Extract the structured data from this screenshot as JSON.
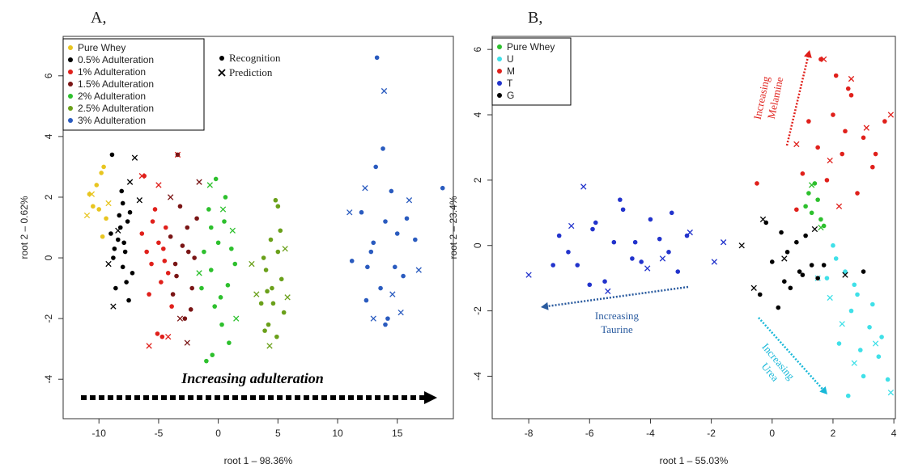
{
  "chart_data": [
    {
      "type": "scatter",
      "panel_label": "A,",
      "x_label": "root 1 – 98.36%",
      "y_label": "root 2 – 0.62%",
      "xlim": [
        -13,
        19.7
      ],
      "ylim": [
        -5.3,
        7.3
      ],
      "xticks": [
        -10,
        -5,
        0,
        5,
        10,
        15
      ],
      "yticks": [
        -4,
        -2,
        0,
        2,
        4,
        6
      ],
      "marker_legend": [
        {
          "label": "Recognition",
          "shape": "dot"
        },
        {
          "label": "Prediction",
          "shape": "x"
        }
      ],
      "annotations": [
        {
          "text": [
            "Increasing adulteration"
          ],
          "color": "#000000"
        }
      ],
      "series": [
        {
          "name": "Pure Whey",
          "color": "#e8c520",
          "x": [
            -9.6,
            -10.2,
            -9.8,
            -10.5,
            -9.4,
            -10,
            -9.7,
            -10.8
          ],
          "values": [
            3,
            2.4,
            2.8,
            1.7,
            1.3,
            1.6,
            0.7,
            2.1
          ],
          "prediction_x": [
            -11,
            -10.6,
            -9.2
          ],
          "prediction_values": [
            1.4,
            2.1,
            1.8
          ]
        },
        {
          "name": "0.5% Adulteration",
          "color": "#000000",
          "x": [
            -8,
            -7.6,
            -8.4,
            -8.8,
            -7.2,
            -8.2,
            -7.8,
            -9,
            -8.6,
            -7.4,
            -8,
            -7.9,
            -8.3,
            -7.5,
            -8.7,
            -7.7,
            -8.1,
            -8.9
          ],
          "values": [
            1.8,
            1.2,
            0.6,
            0,
            -0.5,
            1,
            0.2,
            0.8,
            -1,
            1.5,
            -0.3,
            0.5,
            1.4,
            -1.4,
            0.3,
            -0.8,
            2.2,
            3.4
          ],
          "prediction_x": [
            -7,
            -9.2,
            -6.6,
            -8.8,
            -8.4,
            -7.4
          ],
          "prediction_values": [
            3.3,
            -0.2,
            1.9,
            -1.6,
            0.9,
            2.5
          ]
        },
        {
          "name": "1% Adulteration",
          "color": "#e0201b",
          "x": [
            -5,
            -5.6,
            -4.4,
            -6,
            -4.8,
            -5.3,
            -4.2,
            -6.4,
            -5.8,
            -4.6,
            -5.1,
            -3.9,
            -6.2,
            -5.5,
            -4.5,
            -4.7
          ],
          "values": [
            0.5,
            -0.2,
            1,
            0.2,
            -0.8,
            1.6,
            -0.5,
            0.8,
            -1.2,
            0.3,
            -2.5,
            -1.6,
            2.7,
            1.2,
            -0.1,
            -2.6
          ],
          "prediction_x": [
            -5.8,
            -6.4,
            -3.4,
            -5,
            -4.2
          ],
          "prediction_values": [
            -2.9,
            2.7,
            3.4,
            2.4,
            -2.6
          ]
        },
        {
          "name": "1.5% Adulteration",
          "color": "#7a1515",
          "x": [
            -3,
            -3.5,
            -2.6,
            -2,
            -3.8,
            -2.8,
            -3.2,
            -2.2,
            -4,
            -2.5,
            -3.6,
            -1.8,
            -3.4,
            -2.3
          ],
          "values": [
            0.4,
            -0.6,
            1,
            0,
            -1.2,
            -2,
            1.7,
            -1,
            0.7,
            0.2,
            -0.2,
            1.3,
            3.4,
            -1.7
          ],
          "prediction_x": [
            -2.6,
            -4,
            -1.6,
            -3.2
          ],
          "prediction_values": [
            -2.8,
            2,
            2.5,
            -2
          ]
        },
        {
          "name": "2% Adulteration",
          "color": "#2dc02d",
          "x": [
            0,
            -0.6,
            0.5,
            -1.2,
            0.8,
            -0.3,
            1.1,
            -0.8,
            0.3,
            1.4,
            -1.4,
            0.6,
            -0.2,
            0.9,
            -0.5,
            -1,
            0.2,
            -0.6
          ],
          "values": [
            0.5,
            -0.4,
            1.2,
            0.2,
            -0.9,
            -1.6,
            0.3,
            1.6,
            -2.2,
            -0.2,
            -1,
            2,
            2.6,
            -2.8,
            -3.2,
            -3.4,
            -1.3,
            1
          ],
          "prediction_x": [
            -0.7,
            1.5,
            0.4,
            -1.6,
            1.2
          ],
          "prediction_values": [
            2.4,
            -2,
            1.6,
            -0.5,
            0.9
          ]
        },
        {
          "name": "2.5% Adulteration",
          "color": "#6aa01a",
          "x": [
            4.5,
            4,
            5,
            3.6,
            5.3,
            4.2,
            4.8,
            3.8,
            5.5,
            4.4,
            4.9,
            4.1,
            5.2,
            4.6,
            3.9,
            5
          ],
          "values": [
            -1,
            -0.4,
            0.2,
            -1.5,
            -0.7,
            -2.2,
            1.9,
            0,
            -1.8,
            0.6,
            -2.6,
            -1.1,
            0.9,
            -1.5,
            -2.4,
            1.7
          ],
          "prediction_x": [
            3.2,
            5.6,
            4.3,
            2.8,
            5.8
          ],
          "prediction_values": [
            -1.2,
            0.3,
            -2.9,
            -0.2,
            -1.3
          ]
        },
        {
          "name": "3% Adulteration",
          "color": "#2a5bbf",
          "x": [
            13,
            14,
            12.5,
            15,
            13.6,
            14.5,
            12,
            15.5,
            13.2,
            14.2,
            12.8,
            15.8,
            13.8,
            11.2,
            16.5,
            18.8,
            14,
            13.3,
            12.4,
            14.8
          ],
          "values": [
            0.5,
            1.2,
            -0.3,
            0.8,
            -1,
            2.2,
            1.5,
            -0.6,
            3,
            -2,
            0.2,
            1.3,
            3.6,
            -0.1,
            0.6,
            2.3,
            -2.2,
            6.6,
            -1.4,
            -0.3
          ],
          "prediction_x": [
            13.9,
            12.3,
            15.3,
            11,
            16.8,
            13,
            14.6,
            16
          ],
          "prediction_values": [
            5.5,
            2.3,
            -1.8,
            1.5,
            -0.4,
            -2,
            -1.2,
            1.9
          ]
        }
      ]
    },
    {
      "type": "scatter",
      "panel_label": "B,",
      "x_label": "root 1 – 55.03%",
      "y_label": "root 2 – 23.4%",
      "xlim": [
        -9.2,
        4.05
      ],
      "ylim": [
        -5.3,
        6.4
      ],
      "xticks": [
        -8,
        -6,
        -4,
        -2,
        0,
        2,
        4
      ],
      "yticks": [
        -4,
        -2,
        0,
        2,
        4,
        6
      ],
      "annotations": [
        {
          "text": [
            "Increasing",
            "Melamine"
          ],
          "color": "#e0201b"
        },
        {
          "text": [
            "Increasing",
            "Taurine"
          ],
          "color": "#2a5b9f"
        },
        {
          "text": [
            "Increasing",
            "Urea"
          ],
          "color": "#18b8d8"
        }
      ],
      "series": [
        {
          "name": "Pure Whey",
          "color": "#2dc02d",
          "x": [
            1.2,
            1.5,
            1.3,
            1.6,
            1.4,
            1.1,
            1.7
          ],
          "values": [
            1.6,
            1.4,
            1,
            0.8,
            1.9,
            1.2,
            0.6
          ],
          "prediction_x": [
            1.3,
            1.6
          ],
          "prediction_values": [
            1.85,
            0.55
          ]
        },
        {
          "name": "U",
          "color": "#3fe0e8",
          "x": [
            2,
            2.4,
            2.8,
            3.2,
            2.2,
            3.5,
            2.6,
            3,
            1.8,
            3.8,
            2.5,
            2.9,
            3.3,
            2.1,
            3.6,
            2.7
          ],
          "values": [
            0,
            -0.8,
            -1.5,
            -2.5,
            -3,
            -3.4,
            -2,
            -4,
            -1,
            -4.1,
            -4.6,
            -3.2,
            -1.8,
            -0.4,
            -2.8,
            -1.2
          ],
          "prediction_x": [
            1.5,
            2.7,
            3.4,
            1.9,
            3.9,
            2.3
          ],
          "prediction_values": [
            -1,
            -3.6,
            -3,
            -1.6,
            -4.5,
            -2.4
          ]
        },
        {
          "name": "M",
          "color": "#e0201b",
          "x": [
            1,
            1.5,
            2,
            2.5,
            3,
            1.8,
            2.3,
            2.8,
            3.3,
            1.2,
            2.1,
            2.6,
            3.7,
            0.8,
            -0.5,
            1.6,
            2.4,
            3.4
          ],
          "values": [
            2.2,
            3,
            4,
            4.8,
            3.3,
            2,
            2.8,
            1.6,
            2.4,
            3.8,
            5.2,
            4.6,
            3.8,
            1.1,
            1.9,
            5.7,
            3.5,
            2.8
          ],
          "prediction_x": [
            1.7,
            2.6,
            3.1,
            0.8,
            1.9,
            3.9,
            2.2
          ],
          "prediction_values": [
            5.7,
            5.1,
            3.6,
            3.1,
            2.6,
            4,
            1.2
          ]
        },
        {
          "name": "T",
          "color": "#2233cc",
          "x": [
            -7,
            -6.4,
            -5.8,
            -5.2,
            -4.6,
            -4,
            -3.4,
            -2.8,
            -6,
            -5.5,
            -4.9,
            -4.3,
            -3.7,
            -3.1,
            -6.7,
            -5,
            -4.5,
            -3.3,
            -5.9,
            -7.2
          ],
          "values": [
            0.3,
            -0.6,
            0.7,
            0.1,
            -0.4,
            0.8,
            -0.2,
            0.3,
            -1.2,
            -1.1,
            1.1,
            -0.5,
            0.2,
            -0.8,
            -0.2,
            1.4,
            0.1,
            1,
            0.5,
            -0.6
          ],
          "prediction_x": [
            -8,
            -6.2,
            -5.4,
            -4.1,
            -2.7,
            -1.9,
            -1.6,
            -6.6,
            -3.6
          ],
          "prediction_values": [
            -0.9,
            1.8,
            -1.4,
            -0.7,
            0.4,
            -0.5,
            0.1,
            0.6,
            -0.4
          ]
        },
        {
          "name": "G",
          "color": "#000000",
          "x": [
            0,
            0.5,
            1,
            1.5,
            0.3,
            0.8,
            1.3,
            -0.4,
            0.6,
            1.1,
            -0.2,
            0.2,
            0.9,
            1.7,
            3,
            0.4
          ],
          "values": [
            -0.5,
            -0.2,
            -0.9,
            -1,
            0.4,
            0.1,
            -0.6,
            -1.5,
            -1.3,
            0.3,
            0.7,
            -1.9,
            -0.8,
            -0.6,
            -0.8,
            -1.1
          ],
          "prediction_x": [
            -1,
            -0.3,
            1.4,
            2.4,
            0.4,
            -0.6
          ],
          "prediction_values": [
            0,
            0.8,
            0.5,
            -0.9,
            -0.4,
            -1.3
          ]
        }
      ]
    }
  ]
}
